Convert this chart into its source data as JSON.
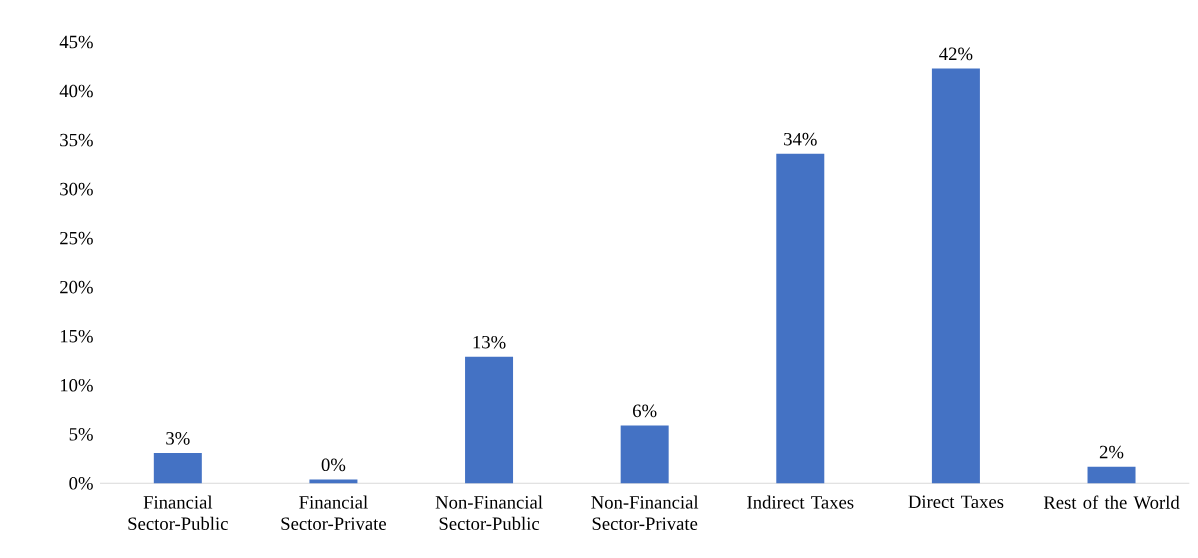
{
  "chart_data": {
    "type": "bar",
    "categories": [
      "Financial Sector-Public",
      "Financial Sector-Private",
      "Non-Financial Sector-Public",
      "Non-Financial Sector-Private",
      "Indirect Taxes",
      "Direct Taxes",
      "Rest of the World"
    ],
    "values": [
      3.1,
      0.4,
      12.9,
      5.9,
      33.6,
      42.3,
      1.7
    ],
    "value_labels": [
      "3%",
      "0%",
      "13%",
      "6%",
      "34%",
      "42%",
      "2%"
    ],
    "color": "#4472c4",
    "ylim": [
      0,
      45
    ],
    "yticks": [
      {
        "value": 0,
        "label": "0%"
      },
      {
        "value": 5,
        "label": "5%"
      },
      {
        "value": 10,
        "label": "10%"
      },
      {
        "value": 15,
        "label": "15%"
      },
      {
        "value": 20,
        "label": "20%"
      },
      {
        "value": 25,
        "label": "25%"
      },
      {
        "value": 30,
        "label": "30%"
      },
      {
        "value": 35,
        "label": "35%"
      },
      {
        "value": 40,
        "label": "40%"
      },
      {
        "value": 45,
        "label": "45%"
      }
    ]
  }
}
